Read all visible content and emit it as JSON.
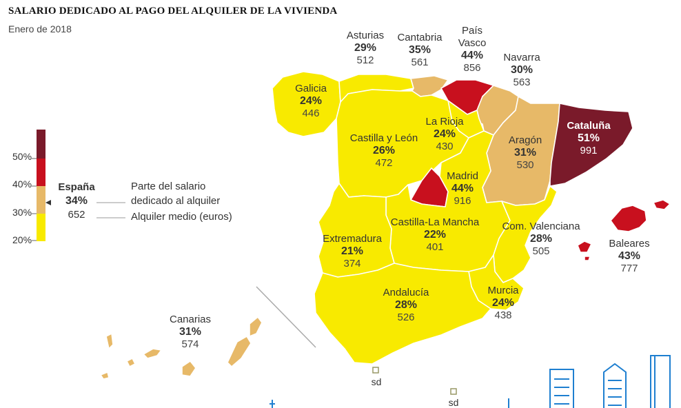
{
  "title": "SALARIO DEDICADO AL PAGO DEL ALQUILER DE LA VIVIENDA",
  "subtitle": "Enero de 2018",
  "legend": {
    "ticks": [
      "50%",
      "40%",
      "30%",
      "20%"
    ],
    "colors": {
      "over50": "#7a1a2a",
      "40_50": "#c8101e",
      "30_40": "#e7b968",
      "20_30": "#f8ea00"
    },
    "spain_name": "España",
    "spain_pct": "34%",
    "spain_eur": "652",
    "desc_line1": "Parte del salario",
    "desc_line2": "dedicado al alquiler",
    "desc_line3": "Alquiler medio (euros)"
  },
  "regions": {
    "galicia": {
      "name": "Galicia",
      "pct": "24%",
      "eur": "446"
    },
    "asturias": {
      "name": "Asturias",
      "pct": "29%",
      "eur": "512"
    },
    "cantabria": {
      "name": "Cantabria",
      "pct": "35%",
      "eur": "561"
    },
    "pais_vasco": {
      "name1": "País",
      "name2": "Vasco",
      "pct": "44%",
      "eur": "856"
    },
    "navarra": {
      "name": "Navarra",
      "pct": "30%",
      "eur": "563"
    },
    "cataluna": {
      "name": "Cataluña",
      "pct": "51%",
      "eur": "991"
    },
    "la_rioja": {
      "name": "La Rioja",
      "pct": "24%",
      "eur": "430"
    },
    "castilla_leon": {
      "name": "Castilla y León",
      "pct": "26%",
      "eur": "472"
    },
    "aragon": {
      "name": "Aragón",
      "pct": "31%",
      "eur": "530"
    },
    "madrid": {
      "name": "Madrid",
      "pct": "44%",
      "eur": "916"
    },
    "castilla_la_mancha": {
      "name": "Castilla-La Mancha",
      "pct": "22%",
      "eur": "401"
    },
    "extremadura": {
      "name": "Extremadura",
      "pct": "21%",
      "eur": "374"
    },
    "com_valenciana": {
      "name": "Com. Valenciana",
      "pct": "28%",
      "eur": "505"
    },
    "baleares": {
      "name": "Baleares",
      "pct": "43%",
      "eur": "777"
    },
    "andalucia": {
      "name": "Andalucía",
      "pct": "28%",
      "eur": "526"
    },
    "murcia": {
      "name": "Murcia",
      "pct": "24%",
      "eur": "438"
    },
    "canarias": {
      "name": "Canarias",
      "pct": "31%",
      "eur": "574"
    }
  },
  "ceuta": "sd",
  "melilla": "sd"
}
